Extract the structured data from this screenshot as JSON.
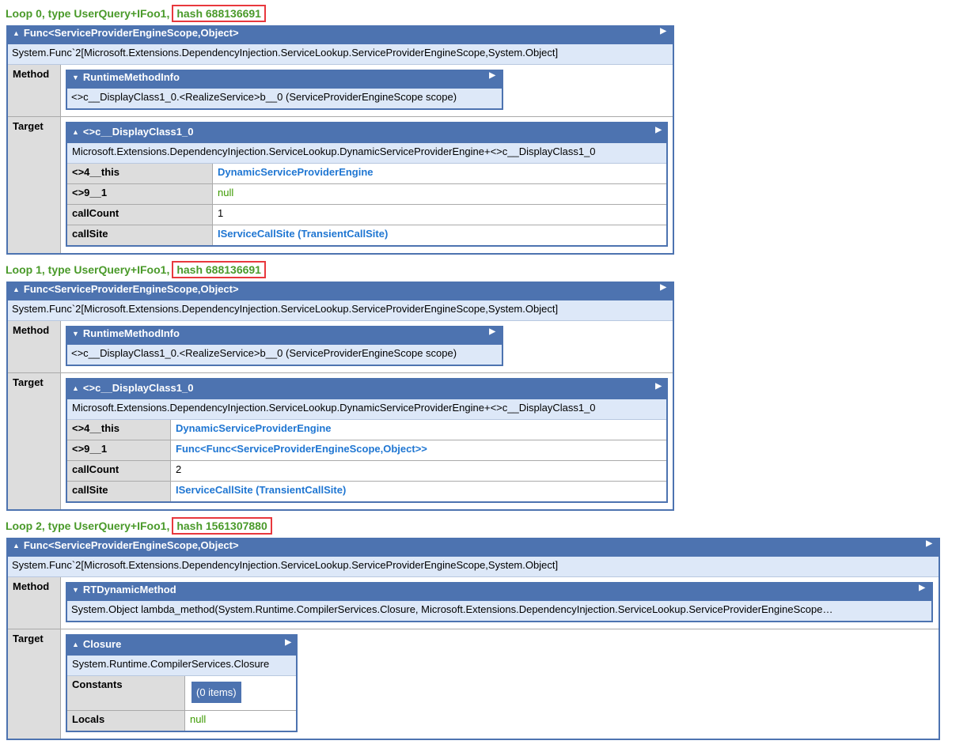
{
  "colors": {
    "header": "#4d73b0",
    "heading": "#4a9a2a",
    "highlight_box": "#e8383d",
    "link": "#1f76d2",
    "null": "#3c9a00"
  },
  "icons": {
    "collapse": "triangle-up-icon",
    "method_collapse": "triangle-down-icon",
    "expand": "triangle-right-icon"
  },
  "loops": [
    {
      "heading": "Loop 0, type UserQuery+IFoo1,",
      "hash": "hash 688136691",
      "func_title": "Func<ServiceProviderEngineScope,Object>",
      "func_type": "System.Func`2[Microsoft.Extensions.DependencyInjection.ServiceLookup.ServiceProviderEngineScope,System.Object]",
      "method_label": "Method",
      "method": {
        "title": "RuntimeMethodInfo",
        "value": "<>c__DisplayClass1_0.<RealizeService>b__0 (ServiceProviderEngineScope scope)"
      },
      "target_label": "Target",
      "target": {
        "title": "<>c__DisplayClass1_0",
        "type": "Microsoft.Extensions.DependencyInjection.ServiceLookup.DynamicServiceProviderEngine+<>c__DisplayClass1_0",
        "rows": [
          {
            "key": "<>4__this",
            "value": "DynamicServiceProviderEngine",
            "kind": "link"
          },
          {
            "key": "<>9__1",
            "value": "null",
            "kind": "null"
          },
          {
            "key": "callCount",
            "value": "1",
            "kind": "text"
          },
          {
            "key": "callSite",
            "value": "IServiceCallSite (TransientCallSite)",
            "kind": "link"
          }
        ]
      }
    },
    {
      "heading": "Loop 1, type UserQuery+IFoo1,",
      "hash": "hash 688136691",
      "func_title": "Func<ServiceProviderEngineScope,Object>",
      "func_type": "System.Func`2[Microsoft.Extensions.DependencyInjection.ServiceLookup.ServiceProviderEngineScope,System.Object]",
      "method_label": "Method",
      "method": {
        "title": "RuntimeMethodInfo",
        "value": "<>c__DisplayClass1_0.<RealizeService>b__0 (ServiceProviderEngineScope scope)"
      },
      "target_label": "Target",
      "target": {
        "title": "<>c__DisplayClass1_0",
        "type": "Microsoft.Extensions.DependencyInjection.ServiceLookup.DynamicServiceProviderEngine+<>c__DisplayClass1_0",
        "rows": [
          {
            "key": "<>4__this",
            "value": "DynamicServiceProviderEngine",
            "kind": "link"
          },
          {
            "key": "<>9__1",
            "value": "Func<Func<ServiceProviderEngineScope,Object>>",
            "kind": "link"
          },
          {
            "key": "callCount",
            "value": "2",
            "kind": "text"
          },
          {
            "key": "callSite",
            "value": "IServiceCallSite (TransientCallSite)",
            "kind": "link"
          }
        ]
      }
    },
    {
      "heading": "Loop 2, type UserQuery+IFoo1,",
      "hash": "hash 1561307880",
      "func_title": "Func<ServiceProviderEngineScope,Object>",
      "func_type": "System.Func`2[Microsoft.Extensions.DependencyInjection.ServiceLookup.ServiceProviderEngineScope,System.Object]",
      "method_label": "Method",
      "method": {
        "title": "RTDynamicMethod",
        "value": "System.Object lambda_method(System.Runtime.CompilerServices.Closure, Microsoft.Extensions.DependencyInjection.ServiceLookup.ServiceProviderEngineScope…"
      },
      "target_label": "Target",
      "target": {
        "title": "Closure",
        "type": "System.Runtime.CompilerServices.Closure",
        "rows": [
          {
            "key": "Constants",
            "value": "(0 items)",
            "kind": "items"
          },
          {
            "key": "Locals",
            "value": "null",
            "kind": "null"
          }
        ]
      }
    }
  ]
}
